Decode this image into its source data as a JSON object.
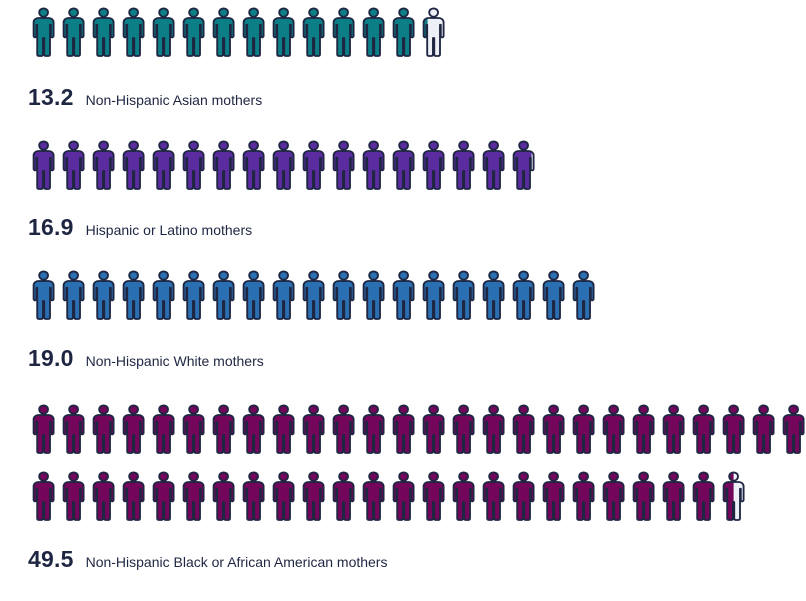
{
  "chart_data": {
    "type": "pictograph",
    "unit_per_icon": 1,
    "series": [
      {
        "name": "Non-Hispanic Asian mothers",
        "value": 13.2,
        "value_label": "13.2",
        "color": "#0b7e86"
      },
      {
        "name": "Hispanic or Latino mothers",
        "value": 16.9,
        "value_label": "16.9",
        "color": "#5a2ca0"
      },
      {
        "name": "Non-Hispanic White mothers",
        "value": 19.0,
        "value_label": "19.0",
        "color": "#2a6fb1"
      },
      {
        "name": "Non-Hispanic Black or African American mothers",
        "value": 49.5,
        "value_label": "49.5",
        "color": "#73055a"
      }
    ],
    "icon_outline_color": "#1e2642",
    "icon_empty_color": "#eef0f8",
    "icons_per_row": 26
  }
}
